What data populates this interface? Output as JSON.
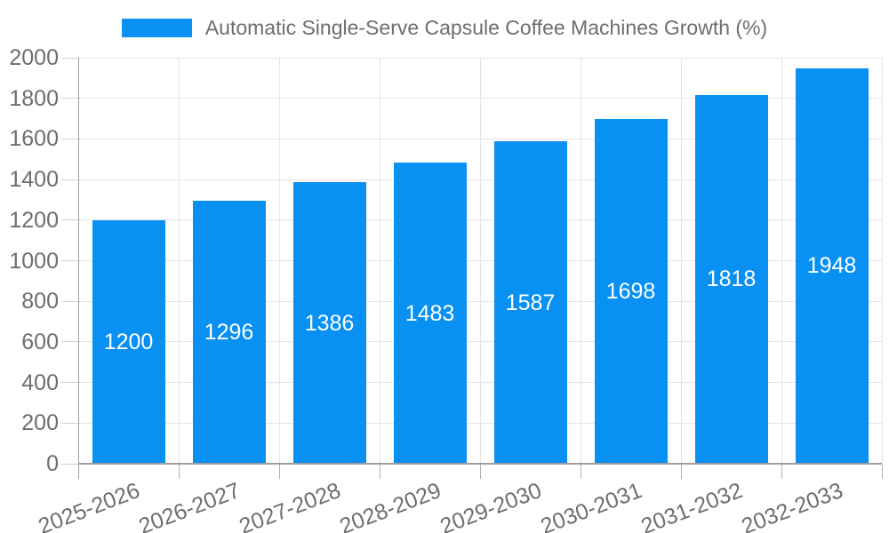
{
  "chart_data": {
    "type": "bar",
    "title": "",
    "legend": {
      "position": "top",
      "label": "Automatic Single-Serve Capsule Coffee Machines Growth (%)"
    },
    "categories": [
      "2025-2026",
      "2026-2027",
      "2027-2028",
      "2028-2029",
      "2029-2030",
      "2030-2031",
      "2031-2032",
      "2032-2033"
    ],
    "series": [
      {
        "name": "Automatic Single-Serve Capsule Coffee Machines Growth (%)",
        "values": [
          1200,
          1296,
          1386,
          1483,
          1587,
          1698,
          1818,
          1948
        ]
      }
    ],
    "xlabel": "",
    "ylabel": "",
    "ylim": [
      0,
      2000
    ],
    "yticks": [
      0,
      200,
      400,
      600,
      800,
      1000,
      1200,
      1400,
      1600,
      1800,
      2000
    ],
    "grid": true,
    "x_label_rotation_deg": -21,
    "colors": {
      "bar": "#0890f3",
      "value_label": "#ffffff",
      "axis_text": "#6e6e6e",
      "legend_text": "#6e6e6e",
      "gridline": "#e4e4e4",
      "tick_dash": "#d0d0d0",
      "tick_mark": "#b0b0b0",
      "axis_line": "#9e9e9e",
      "background": "#ffffff"
    }
  }
}
